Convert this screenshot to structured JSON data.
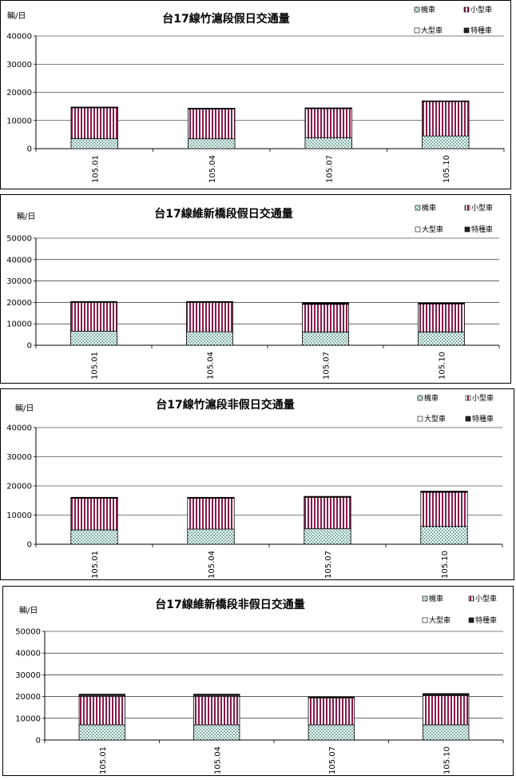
{
  "unit_label": "輛/日",
  "legend_labels": {
    "motorcycle": "機車",
    "small_car": "小型車",
    "large_car": "大型車",
    "special_car": "特種車"
  },
  "colors": {
    "motorcycle": "#1f7a6a",
    "small_car": "#8b1a4a",
    "special_car": "#222222"
  },
  "chart_data": [
    {
      "type": "bar",
      "stacked": true,
      "title": "台17線竹滬段假日交通量",
      "ylabel": "輛/日",
      "categories": [
        "105.01",
        "105.04",
        "105.07",
        "105.10"
      ],
      "ylim": [
        0,
        40000
      ],
      "yticks": [
        0,
        10000,
        20000,
        30000,
        40000
      ],
      "series": [
        {
          "name": "機車",
          "values": [
            3600,
            3500,
            3800,
            4500
          ]
        },
        {
          "name": "小型車",
          "values": [
            10900,
            10600,
            10400,
            12200
          ]
        },
        {
          "name": "大型車",
          "values": [
            200,
            200,
            200,
            200
          ]
        },
        {
          "name": "特種車",
          "values": [
            50,
            50,
            50,
            50
          ]
        }
      ],
      "legend": "top-right",
      "grid": true
    },
    {
      "type": "bar",
      "stacked": true,
      "title": "台17線維新橋段假日交通量",
      "ylabel": "輛/日",
      "categories": [
        "105.01",
        "105.04",
        "105.07",
        "105.10"
      ],
      "ylim": [
        0,
        50000
      ],
      "yticks": [
        0,
        10000,
        20000,
        30000,
        40000,
        50000
      ],
      "series": [
        {
          "name": "機車",
          "values": [
            6500,
            6300,
            6200,
            6200
          ]
        },
        {
          "name": "小型車",
          "values": [
            13500,
            13700,
            12900,
            13100
          ]
        },
        {
          "name": "大型車",
          "values": [
            300,
            300,
            300,
            300
          ]
        },
        {
          "name": "特種車",
          "values": [
            100,
            100,
            500,
            100
          ]
        }
      ],
      "legend": "top-right",
      "grid": true
    },
    {
      "type": "bar",
      "stacked": true,
      "title": "台17線竹滬段非假日交通量",
      "ylabel": "輛/日",
      "categories": [
        "105.01",
        "105.04",
        "105.07",
        "105.10"
      ],
      "ylim": [
        0,
        40000
      ],
      "yticks": [
        0,
        10000,
        20000,
        30000,
        40000
      ],
      "series": [
        {
          "name": "機車",
          "values": [
            4900,
            5200,
            5300,
            6100
          ]
        },
        {
          "name": "小型車",
          "values": [
            10900,
            10600,
            10800,
            11700
          ]
        },
        {
          "name": "大型車",
          "values": [
            200,
            200,
            200,
            200
          ]
        },
        {
          "name": "特種車",
          "values": [
            80,
            80,
            100,
            200
          ]
        }
      ],
      "legend": "top-right",
      "grid": true
    },
    {
      "type": "bar",
      "stacked": true,
      "title": "台17線維新橋段非假日交通量",
      "ylabel": "輛/日",
      "categories": [
        "105.01",
        "105.04",
        "105.07",
        "105.10"
      ],
      "ylim": [
        0,
        50000
      ],
      "yticks": [
        0,
        10000,
        20000,
        30000,
        40000,
        50000
      ],
      "series": [
        {
          "name": "機車",
          "values": [
            7000,
            7000,
            7000,
            7000
          ]
        },
        {
          "name": "小型車",
          "values": [
            13100,
            13100,
            12400,
            13400
          ]
        },
        {
          "name": "大型車",
          "values": [
            400,
            400,
            300,
            400
          ]
        },
        {
          "name": "特種車",
          "values": [
            600,
            600,
            200,
            600
          ]
        }
      ],
      "legend": "top-right",
      "grid": true
    }
  ]
}
